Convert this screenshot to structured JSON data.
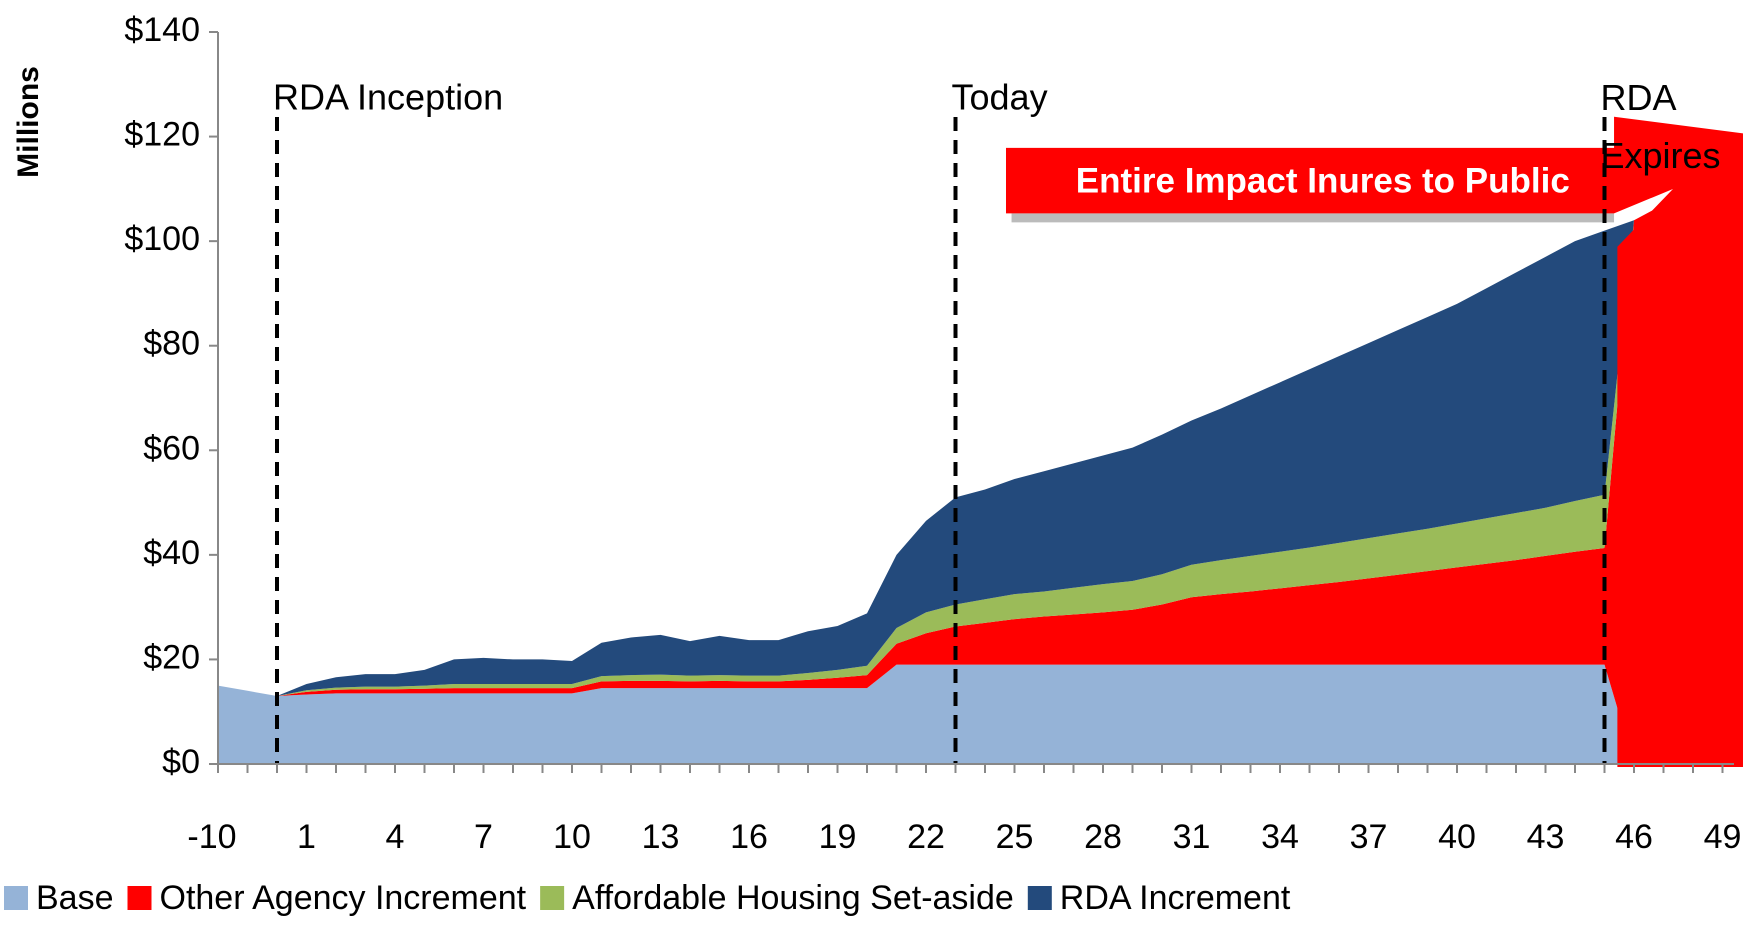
{
  "chart_data": {
    "type": "stacked_area",
    "y_label": "Millions",
    "categories": [
      "-10",
      null,
      null,
      "1",
      null,
      null,
      "4",
      null,
      null,
      "7",
      null,
      null,
      "10",
      null,
      null,
      "13",
      null,
      null,
      "16",
      null,
      null,
      "19",
      null,
      null,
      "22",
      null,
      null,
      "25",
      null,
      null,
      "28",
      null,
      null,
      "31",
      null,
      null,
      "34",
      null,
      null,
      "37",
      null,
      null,
      "40",
      null,
      null,
      "43",
      null,
      null,
      "46",
      null,
      null,
      "49"
    ],
    "series": [
      {
        "name": "Base",
        "color": "#95b3d7",
        "values": [
          15,
          14,
          13,
          13.3,
          13.5,
          13.5,
          13.5,
          13.5,
          13.5,
          13.5,
          13.5,
          13.5,
          13.5,
          14.5,
          14.5,
          14.5,
          14.5,
          14.5,
          14.5,
          14.5,
          14.5,
          14.5,
          14.5,
          19,
          19,
          19,
          19,
          19,
          19,
          19,
          19,
          19,
          19,
          19,
          19,
          19,
          19,
          19,
          19,
          19,
          19,
          19,
          19,
          19,
          19,
          19,
          19,
          19,
          0,
          0,
          0,
          0
        ]
      },
      {
        "name": "Other Agency Increment",
        "color": "#ff0000",
        "values": [
          0,
          0,
          0,
          0.5,
          0.7,
          0.8,
          0.8,
          0.9,
          1,
          1,
          1,
          1,
          1,
          1.3,
          1.4,
          1.4,
          1.3,
          1.4,
          1.3,
          1.3,
          1.6,
          2,
          2.5,
          4,
          6,
          7.3,
          8,
          8.7,
          9.2,
          9.6,
          10,
          10.5,
          11.5,
          12.9,
          13.5,
          14,
          14.6,
          15.2,
          15.8,
          16.5,
          17.2,
          17.9,
          18.6,
          19.3,
          20,
          20.8,
          21.6,
          22.3,
          104,
          107,
          110,
          113
        ]
      },
      {
        "name": "Affordable Housing Set-aside",
        "color": "#9bbb59",
        "values": [
          0,
          0,
          0,
          0.3,
          0.4,
          0.5,
          0.5,
          0.6,
          0.8,
          0.8,
          0.8,
          0.8,
          0.8,
          1,
          1.1,
          1.2,
          1.1,
          1.1,
          1.1,
          1.1,
          1.3,
          1.5,
          1.8,
          3,
          4,
          4.2,
          4.5,
          4.8,
          4.8,
          5.1,
          5.4,
          5.5,
          5.8,
          6.2,
          6.5,
          6.8,
          7,
          7.2,
          7.5,
          7.7,
          7.9,
          8.1,
          8.4,
          8.7,
          9,
          9.2,
          9.7,
          10.2,
          0,
          0,
          0,
          0
        ]
      },
      {
        "name": "RDA Increment",
        "color": "#234a7c",
        "values": [
          0,
          0,
          0,
          1.2,
          2,
          2.4,
          2.4,
          3,
          4.7,
          5,
          4.7,
          4.7,
          4.4,
          6.4,
          7.2,
          7.6,
          6.6,
          7.5,
          6.8,
          6.8,
          8,
          8.4,
          10,
          14,
          17.5,
          20.5,
          21,
          22,
          23,
          23.8,
          24.6,
          25.5,
          26.7,
          27.6,
          29,
          30.7,
          32.4,
          34.1,
          35.7,
          37.3,
          38.9,
          40.5,
          42,
          44,
          46,
          48,
          49.7,
          50.5,
          0,
          0,
          0,
          0
        ]
      }
    ],
    "ylim": [
      0,
      140
    ],
    "yticks": [
      {
        "value": 0,
        "label": "$0"
      },
      {
        "value": 20,
        "label": "$20"
      },
      {
        "value": 40,
        "label": "$40"
      },
      {
        "value": 60,
        "label": "$60"
      },
      {
        "value": 80,
        "label": "$80"
      },
      {
        "value": 100,
        "label": "$100"
      },
      {
        "value": 120,
        "label": "$120"
      },
      {
        "value": 140,
        "label": "$140"
      }
    ],
    "annotations": [
      "RDA Inception",
      "Today",
      "RDA Expires"
    ],
    "arrow_text": "Entire Impact Inures to Public",
    "grid": false,
    "legend": "bottom"
  }
}
